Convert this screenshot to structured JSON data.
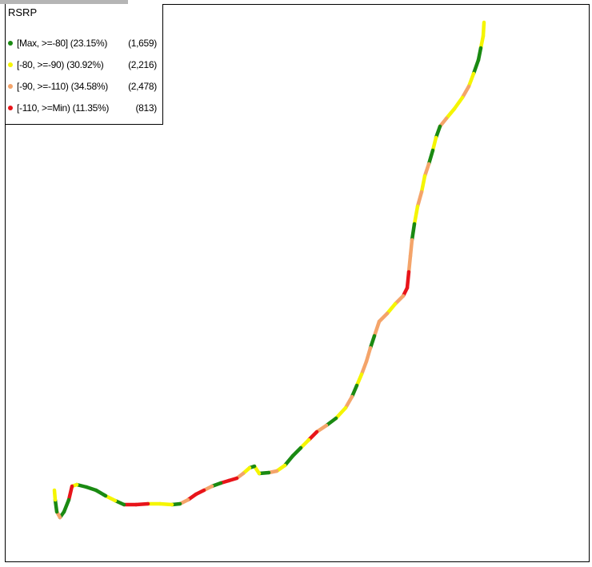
{
  "legend": {
    "title": "RSRP",
    "items": [
      {
        "range": "[Max, >=-80] (23.15%)",
        "count": "(1,659)",
        "color": "#1a8a12"
      },
      {
        "range": "[-80, >=-90) (30.92%)",
        "count": "(2,216)",
        "color": "#f5f500"
      },
      {
        "range": "[-90, >=-110) (34.58%)",
        "count": "(2,478)",
        "color": "#f4a46a"
      },
      {
        "range": "[-110, >=Min) (11.35%)",
        "count": "(813)",
        "color": "#e8141a"
      }
    ]
  },
  "route": {
    "segment_colors": [
      "#f5f500",
      "#f5f500",
      "#1a8a12",
      "#1a8a12",
      "#f5f500",
      "#f4a46a",
      "#f5f500",
      "#f5f500",
      "#f4a46a",
      "#1a8a12",
      "#f5f500",
      "#1a8a12",
      "#f4a46a",
      "#f5f500",
      "#f4a46a",
      "#f5f500",
      "#1a8a12",
      "#f4a46a",
      "#f4a46a",
      "#e8141a",
      "#e8141a",
      "#f4a46a",
      "#f5f500",
      "#f4a46a",
      "#f4a46a",
      "#1a8a12",
      "#f4a46a",
      "#f4a46a",
      "#f5f500",
      "#1a8a12",
      "#f4a46a",
      "#f5f500",
      "#1a8a12",
      "#f4a46a",
      "#e8141a",
      "#f5f500",
      "#1a8a12",
      "#1a8a12",
      "#f5f500",
      "#f4a46a",
      "#1a8a12",
      "#f5f500",
      "#1a8a12",
      "#f5f500",
      "#f4a46a",
      "#e8141a",
      "#e8141a",
      "#1a8a12",
      "#f4a46a",
      "#e8141a",
      "#e8141a",
      "#f4a46a",
      "#1a8a12",
      "#f5f500",
      "#f5f500",
      "#e8141a",
      "#e8141a",
      "#1a8a12",
      "#f5f500",
      "#1a8a12",
      "#1a8a12",
      "#1a8a12",
      "#f5f500",
      "#e8141a",
      "#1a8a12",
      "#1a8a12",
      "#f4a46a",
      "#1a8a12",
      "#f5f500",
      "#f5f500"
    ]
  }
}
